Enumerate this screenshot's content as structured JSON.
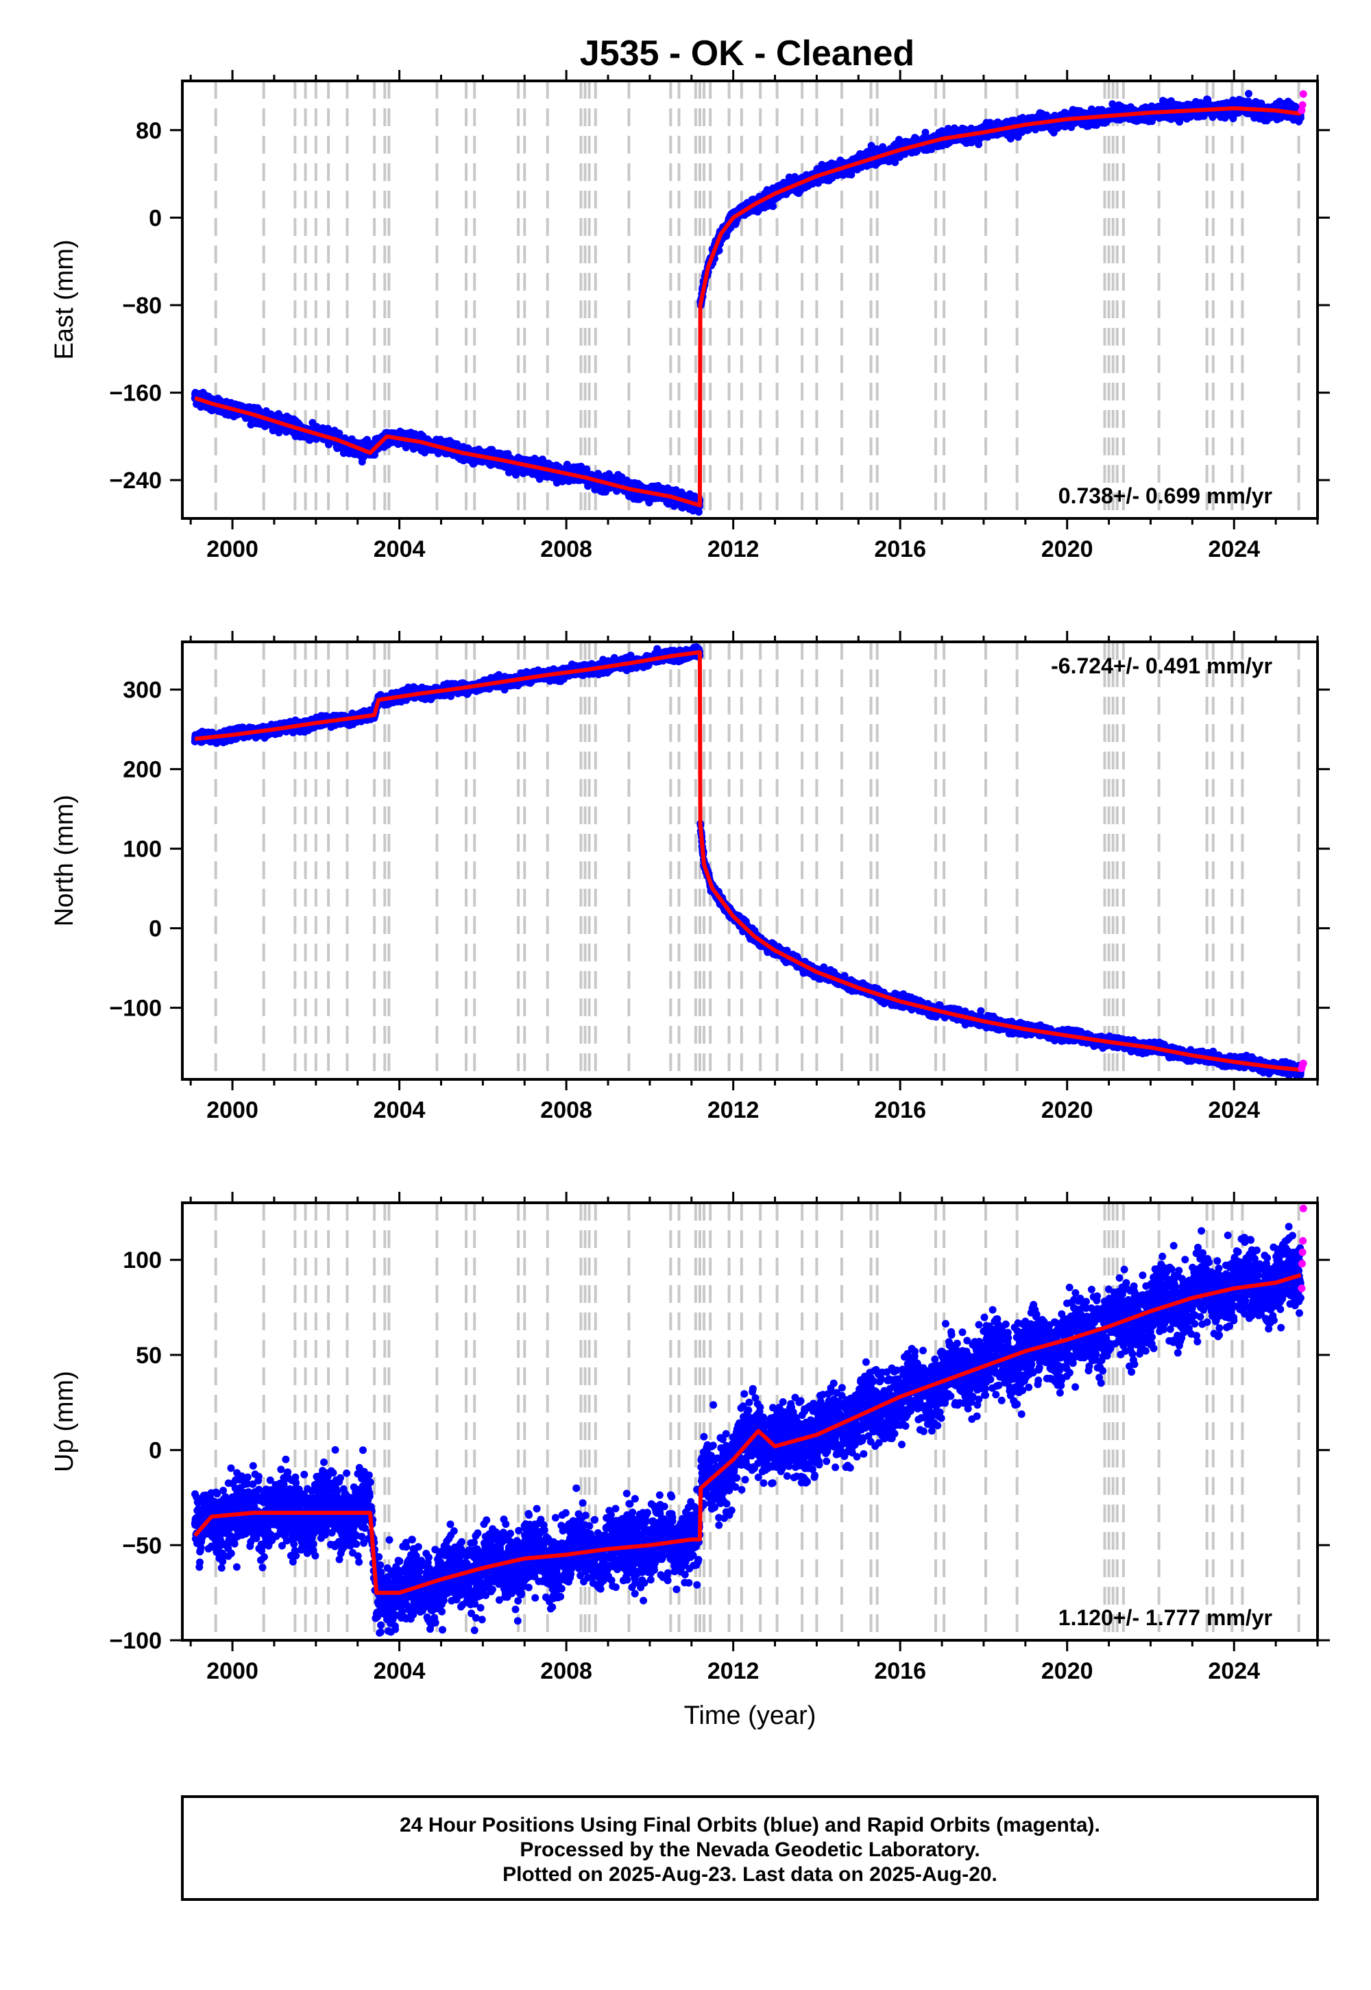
{
  "title": "J535  - OK - Cleaned",
  "footer": {
    "line1": "24 Hour Positions Using Final Orbits (blue) and Rapid Orbits (magenta).",
    "line2": "Processed by the Nevada Geodetic Laboratory.",
    "line3": "Plotted on 2025-Aug-23. Last data on 2025-Aug-20."
  },
  "colors": {
    "final": "#0000ff",
    "rapid": "#ff00ff",
    "model": "#ff0000",
    "steps": "#c8c8c8"
  },
  "chart_data": [
    {
      "type": "scatter",
      "ylabel": "East (mm)",
      "xlabel": "",
      "xlim": [
        1998.8,
        2026.0
      ],
      "ylim": [
        -275,
        125
      ],
      "xticks": [
        2000,
        2004,
        2008,
        2012,
        2016,
        2020,
        2024
      ],
      "yticks": [
        -240,
        -160,
        -80,
        0,
        80
      ],
      "rate_label": "0.738+/- 0.699 mm/yr",
      "rate_position": "bottom-right",
      "series": [
        {
          "role": "final-orbits",
          "x": [
            1999.1,
            1999.5,
            2000.5,
            2001.5,
            2002.5,
            2003.3,
            2003.7,
            2004.5,
            2005.5,
            2006.5,
            2007.5,
            2008.5,
            2009.5,
            2010.5,
            2011.2,
            2011.21,
            2011.4,
            2011.7,
            2012.0,
            2012.5,
            2013.0,
            2014.0,
            2015.0,
            2016.0,
            2017.0,
            2018.0,
            2019.0,
            2020.0,
            2021.0,
            2022.0,
            2023.0,
            2024.0,
            2025.0,
            2025.6
          ],
          "y": [
            -165,
            -170,
            -180,
            -192,
            -203,
            -215,
            -200,
            -205,
            -215,
            -222,
            -230,
            -238,
            -248,
            -255,
            -263,
            -80,
            -45,
            -15,
            0,
            12,
            22,
            38,
            50,
            62,
            72,
            78,
            85,
            90,
            93,
            96,
            98,
            100,
            98,
            95
          ]
        },
        {
          "role": "rapid-orbits",
          "x": [
            2025.62,
            2025.64,
            2025.66
          ],
          "y": [
            98,
            103,
            113
          ]
        }
      ]
    },
    {
      "type": "scatter",
      "ylabel": "North (mm)",
      "xlabel": "",
      "xlim": [
        1998.8,
        2026.0
      ],
      "ylim": [
        -190,
        360
      ],
      "xticks": [
        2000,
        2004,
        2008,
        2012,
        2016,
        2020,
        2024
      ],
      "yticks": [
        -100,
        0,
        100,
        200,
        300
      ],
      "rate_label": "-6.724+/- 0.491 mm/yr",
      "rate_position": "top-right",
      "series": [
        {
          "role": "final-orbits",
          "x": [
            1999.1,
            2000.0,
            2001.0,
            2002.0,
            2003.0,
            2003.4,
            2003.5,
            2004.5,
            2005.5,
            2006.5,
            2007.5,
            2008.5,
            2009.5,
            2010.5,
            2011.2,
            2011.21,
            2011.3,
            2011.5,
            2012.0,
            2012.5,
            2013.0,
            2014.0,
            2015.0,
            2016.0,
            2017.0,
            2018.0,
            2019.0,
            2020.0,
            2021.0,
            2022.0,
            2023.0,
            2024.0,
            2025.0,
            2025.6
          ],
          "y": [
            238,
            243,
            250,
            258,
            265,
            268,
            287,
            295,
            302,
            310,
            318,
            325,
            333,
            342,
            347,
            130,
            80,
            50,
            15,
            -10,
            -28,
            -55,
            -75,
            -92,
            -105,
            -117,
            -127,
            -135,
            -143,
            -150,
            -160,
            -168,
            -175,
            -178
          ]
        },
        {
          "role": "rapid-orbits",
          "x": [
            2025.62,
            2025.64,
            2025.66
          ],
          "y": [
            -176,
            -172,
            -170
          ]
        }
      ]
    },
    {
      "type": "scatter",
      "ylabel": "Up (mm)",
      "xlabel": "Time (year)",
      "xlim": [
        1998.8,
        2026.0
      ],
      "ylim": [
        -100,
        130
      ],
      "xticks": [
        2000,
        2004,
        2008,
        2012,
        2016,
        2020,
        2024
      ],
      "yticks": [
        -100,
        -50,
        0,
        50,
        100
      ],
      "rate_label": "1.120+/- 1.777 mm/yr",
      "rate_position": "bottom-right",
      "series": [
        {
          "role": "final-orbits",
          "x": [
            1999.1,
            1999.5,
            2000.5,
            2001.5,
            2002.5,
            2003.3,
            2003.45,
            2004.0,
            2005.0,
            2006.0,
            2007.0,
            2008.0,
            2009.0,
            2010.0,
            2011.0,
            2011.2,
            2011.22,
            2012.0,
            2012.6,
            2013.0,
            2014.0,
            2015.0,
            2016.0,
            2017.0,
            2018.0,
            2019.0,
            2020.0,
            2021.0,
            2022.0,
            2023.0,
            2024.0,
            2025.0,
            2025.6
          ],
          "y": [
            -45,
            -35,
            -33,
            -33,
            -33,
            -33,
            -75,
            -75,
            -68,
            -62,
            -57,
            -55,
            -52,
            -50,
            -47,
            -47,
            -20,
            -5,
            10,
            2,
            8,
            18,
            28,
            36,
            44,
            52,
            58,
            65,
            73,
            80,
            85,
            88,
            92
          ]
        },
        {
          "role": "rapid-orbits",
          "x": [
            2025.62,
            2025.63,
            2025.64,
            2025.65,
            2025.66
          ],
          "y": [
            85,
            98,
            104,
            110,
            127
          ]
        }
      ]
    }
  ],
  "step_epochs": [
    1999.6,
    2000.75,
    2001.5,
    2001.75,
    2002.0,
    2002.3,
    2002.75,
    2003.4,
    2003.65,
    2003.75,
    2004.9,
    2005.6,
    2005.8,
    2006.85,
    2007.0,
    2007.55,
    2008.35,
    2008.45,
    2008.55,
    2008.7,
    2009.5,
    2010.5,
    2010.7,
    2011.1,
    2011.2,
    2011.3,
    2011.45,
    2011.9,
    2012.2,
    2012.65,
    2013.05,
    2013.65,
    2014.0,
    2014.6,
    2015.3,
    2015.45,
    2016.85,
    2017.05,
    2018.05,
    2018.8,
    2020.9,
    2021.0,
    2021.1,
    2021.2,
    2021.35,
    2022.2,
    2023.35,
    2023.5,
    2023.95,
    2024.2,
    2025.55
  ]
}
